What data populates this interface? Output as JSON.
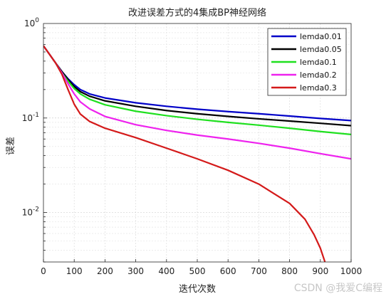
{
  "chart_data": {
    "type": "line",
    "title": "改进误差方式的4集成BP神经网络",
    "xlabel": "迭代次数",
    "ylabel": "误差",
    "xlim": [
      0,
      1000
    ],
    "ylim": [
      0.003,
      1
    ],
    "yscale": "log",
    "grid": true,
    "legend_position": "top-right",
    "x_ticks": [
      "0",
      "100",
      "200",
      "300",
      "400",
      "500",
      "600",
      "700",
      "800",
      "900",
      "1000"
    ],
    "y_tick_values": [
      1,
      0.1,
      0.01
    ],
    "series": [
      {
        "name": "lemda0.01",
        "color": "#0000c8",
        "points": [
          [
            0,
            0.58
          ],
          [
            20,
            0.47
          ],
          [
            40,
            0.38
          ],
          [
            60,
            0.31
          ],
          [
            80,
            0.26
          ],
          [
            100,
            0.225
          ],
          [
            120,
            0.2
          ],
          [
            150,
            0.18
          ],
          [
            200,
            0.163
          ],
          [
            300,
            0.145
          ],
          [
            400,
            0.133
          ],
          [
            500,
            0.124
          ],
          [
            600,
            0.117
          ],
          [
            700,
            0.111
          ],
          [
            800,
            0.105
          ],
          [
            900,
            0.099
          ],
          [
            1000,
            0.094
          ]
        ]
      },
      {
        "name": "lemda0.05",
        "color": "#000000",
        "points": [
          [
            0,
            0.58
          ],
          [
            20,
            0.47
          ],
          [
            40,
            0.38
          ],
          [
            60,
            0.31
          ],
          [
            80,
            0.255
          ],
          [
            100,
            0.215
          ],
          [
            120,
            0.19
          ],
          [
            150,
            0.17
          ],
          [
            200,
            0.152
          ],
          [
            300,
            0.133
          ],
          [
            400,
            0.12
          ],
          [
            500,
            0.111
          ],
          [
            600,
            0.104
          ],
          [
            700,
            0.098
          ],
          [
            800,
            0.093
          ],
          [
            900,
            0.088
          ],
          [
            1000,
            0.083
          ]
        ]
      },
      {
        "name": "lemda0.1",
        "color": "#1fe01f",
        "points": [
          [
            0,
            0.58
          ],
          [
            20,
            0.47
          ],
          [
            40,
            0.38
          ],
          [
            60,
            0.3
          ],
          [
            80,
            0.245
          ],
          [
            100,
            0.205
          ],
          [
            120,
            0.18
          ],
          [
            150,
            0.158
          ],
          [
            200,
            0.138
          ],
          [
            300,
            0.118
          ],
          [
            400,
            0.106
          ],
          [
            500,
            0.097
          ],
          [
            600,
            0.09
          ],
          [
            700,
            0.084
          ],
          [
            800,
            0.078
          ],
          [
            900,
            0.072
          ],
          [
            1000,
            0.067
          ]
        ]
      },
      {
        "name": "lemda0.2",
        "color": "#ee22ee",
        "points": [
          [
            0,
            0.58
          ],
          [
            20,
            0.47
          ],
          [
            40,
            0.38
          ],
          [
            60,
            0.3
          ],
          [
            80,
            0.23
          ],
          [
            100,
            0.18
          ],
          [
            120,
            0.148
          ],
          [
            150,
            0.125
          ],
          [
            200,
            0.104
          ],
          [
            300,
            0.085
          ],
          [
            400,
            0.074
          ],
          [
            500,
            0.066
          ],
          [
            600,
            0.06
          ],
          [
            700,
            0.054
          ],
          [
            800,
            0.048
          ],
          [
            900,
            0.042
          ],
          [
            1000,
            0.037
          ]
        ]
      },
      {
        "name": "lemda0.3",
        "color": "#d41a1a",
        "points": [
          [
            0,
            0.58
          ],
          [
            20,
            0.47
          ],
          [
            40,
            0.38
          ],
          [
            60,
            0.29
          ],
          [
            80,
            0.2
          ],
          [
            100,
            0.14
          ],
          [
            120,
            0.11
          ],
          [
            150,
            0.092
          ],
          [
            200,
            0.078
          ],
          [
            300,
            0.062
          ],
          [
            400,
            0.048
          ],
          [
            500,
            0.037
          ],
          [
            600,
            0.028
          ],
          [
            700,
            0.02
          ],
          [
            800,
            0.0125
          ],
          [
            850,
            0.0085
          ],
          [
            880,
            0.0058
          ],
          [
            900,
            0.0042
          ],
          [
            915,
            0.003
          ]
        ]
      }
    ]
  },
  "watermark": "CSDN @我爱C编程"
}
